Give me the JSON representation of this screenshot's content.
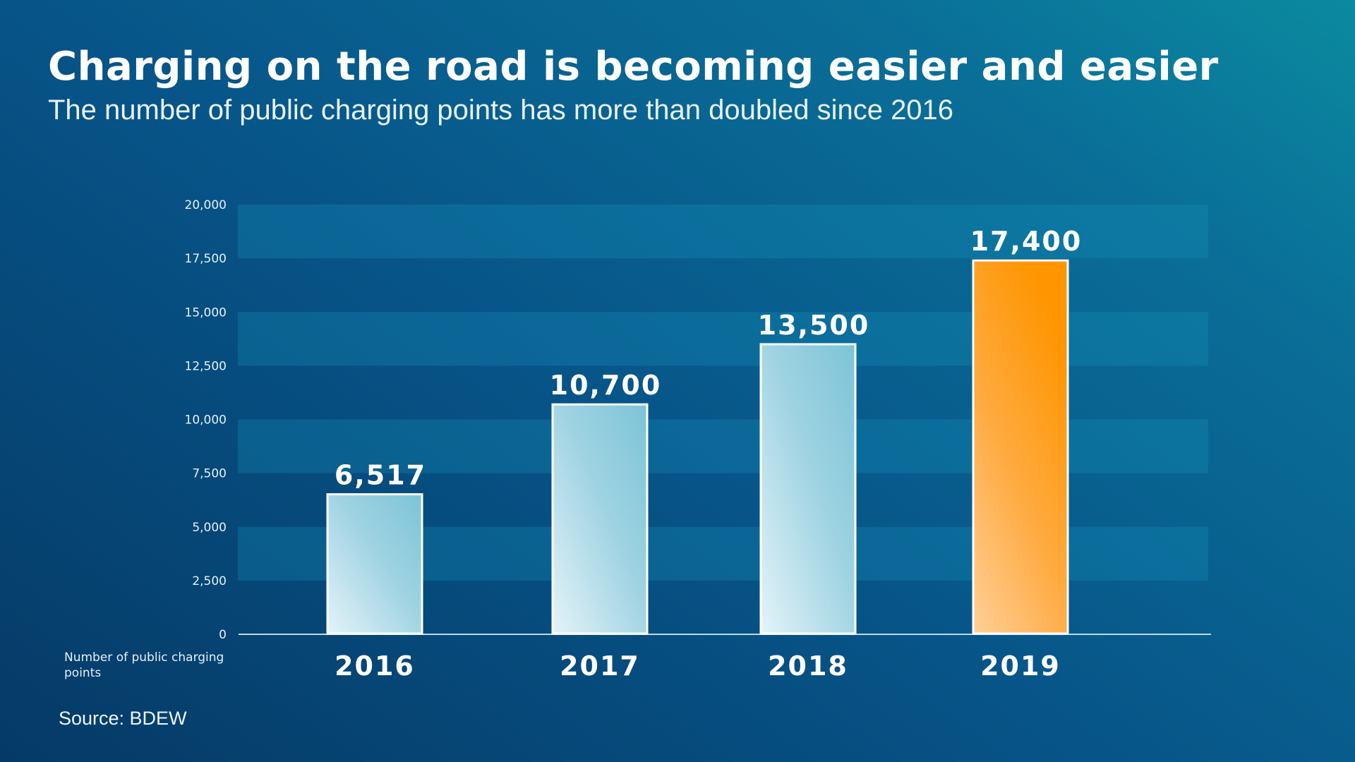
{
  "title": "Charging on the road is becoming easier and easier",
  "subtitle": "The number of public charging points has more than doubled since 2016",
  "source": "Source: BDEW",
  "chart_data": {
    "type": "bar",
    "title": "Charging on the road is becoming easier and easier",
    "subtitle": "The number of public charging points has more than doubled since 2016",
    "xlabel": "",
    "ylabel": "Number of public charging points",
    "categories": [
      "2016",
      "2017",
      "2018",
      "2019"
    ],
    "values": [
      6517,
      10700,
      13500,
      17400
    ],
    "value_labels": [
      "6,517",
      "10,700",
      "13,500",
      "17,400"
    ],
    "ylim": [
      0,
      20000
    ],
    "yticks": [
      0,
      2500,
      5000,
      7500,
      10000,
      12500,
      15000,
      17500,
      20000
    ],
    "ytick_labels": [
      "0",
      "2,500",
      "5,000",
      "7,500",
      "10,000",
      "12,500",
      "15,000",
      "17,500",
      "20,000"
    ],
    "grid": "alternating horizontal bands",
    "legend": "none",
    "colors": {
      "default_bar": "#8ccbdc",
      "highlight_bar": "#ff9900",
      "bar_border": "#ffffff"
    },
    "highlight_category": "2019"
  }
}
